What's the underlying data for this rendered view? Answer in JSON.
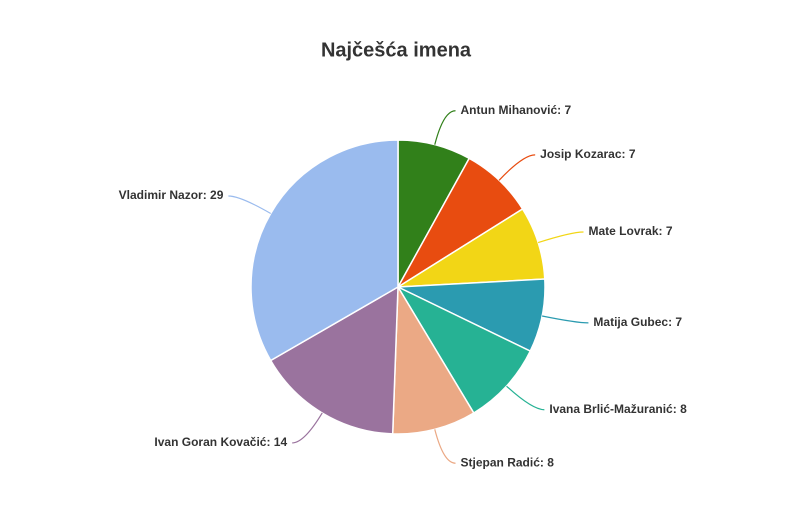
{
  "chart_data": {
    "type": "pie",
    "title": "Najčešća imena",
    "values": [
      7,
      7,
      7,
      7,
      8,
      8,
      14,
      29
    ],
    "value_labels": [
      "Antun Mihanović: 7",
      "Josip Kozarac: 7",
      "Mate Lovrak: 7",
      "Matija Gubec: 7",
      "Ivana Brlić-Mažuranić: 8",
      "Stjepan Radić: 8",
      "Ivan Goran Kovačić: 14",
      "Vladimir Nazor: 29"
    ],
    "colors": [
      "#31801a",
      "#e84c10",
      "#f2d616",
      "#2b9bb0",
      "#26b294",
      "#eba985",
      "#9a739e",
      "#9abbee"
    ]
  }
}
